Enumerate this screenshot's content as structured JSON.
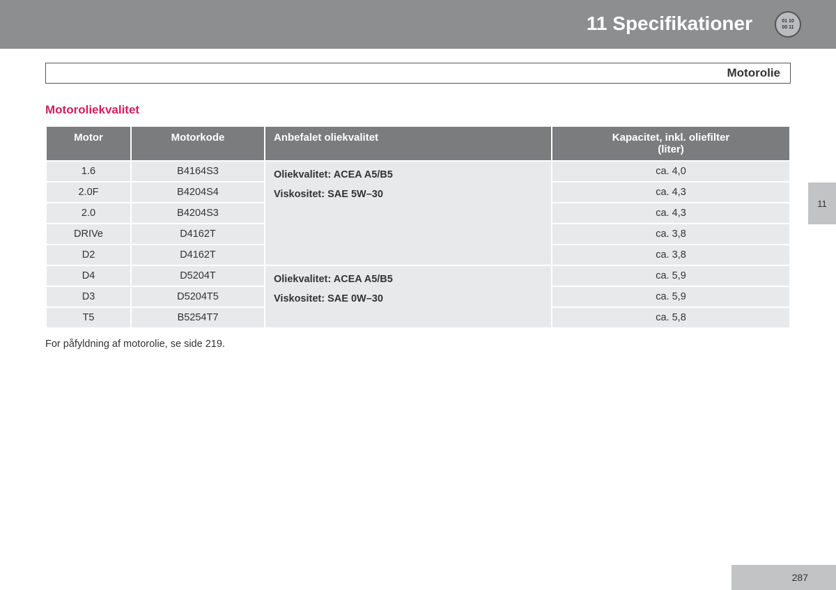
{
  "header": {
    "chapter_title": "11 Specifikationer",
    "icon_line1": "01 10",
    "icon_line2": "00 11"
  },
  "section_bar": "Motorolie",
  "sub_heading": "Motoroliekvalitet",
  "table": {
    "columns": {
      "motor": "Motor",
      "code": "Motorkode",
      "quality": "Anbefalet oliekvalitet",
      "capacity_line1": "Kapacitet, inkl. oliefilter",
      "capacity_line2": "(liter)"
    },
    "group1_quality_line1": "Oliekvalitet: ACEA A5/B5",
    "group1_quality_line2": "Viskositet: SAE 5W–30",
    "group2_quality_line1": "Oliekvalitet: ACEA A5/B5",
    "group2_quality_line2": "Viskositet: SAE 0W–30",
    "rows": [
      {
        "motor": "1.6",
        "code": "B4164S3",
        "capacity": "ca. 4,0"
      },
      {
        "motor": "2.0F",
        "code": "B4204S4",
        "capacity": "ca. 4,3"
      },
      {
        "motor": "2.0",
        "code": "B4204S3",
        "capacity": "ca. 4,3"
      },
      {
        "motor": "DRIVe",
        "code": "D4162T",
        "capacity": "ca. 3,8"
      },
      {
        "motor": "D2",
        "code": "D4162T",
        "capacity": "ca. 3,8"
      },
      {
        "motor": "D4",
        "code": "D5204T",
        "capacity": "ca. 5,9"
      },
      {
        "motor": "D3",
        "code": "D5204T5",
        "capacity": "ca. 5,9"
      },
      {
        "motor": "T5",
        "code": "B5254T7",
        "capacity": "ca. 5,8"
      }
    ]
  },
  "footnote": "For påfyldning af motorolie, se side 219.",
  "side_tab": "11",
  "page_number": "287",
  "colors": {
    "header_bg": "#8c8e90",
    "th_bg": "#7a7c7e",
    "td_bg": "#e8e9ea",
    "accent": "#d21f5d",
    "tab_bg": "#c1c3c5"
  }
}
